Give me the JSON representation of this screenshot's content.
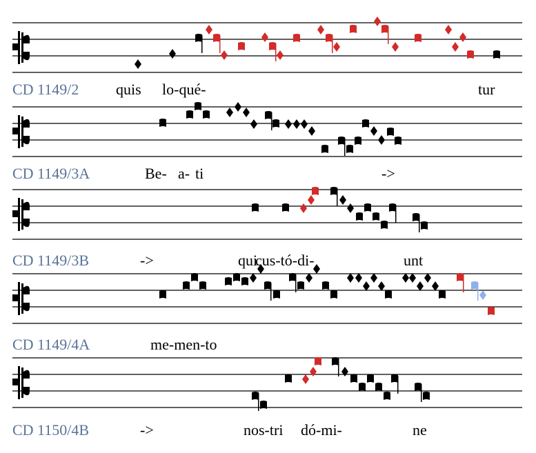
{
  "systems": [
    {
      "label": "CD 1149/2",
      "lyrics": [
        "quis",
        "lo-qué-",
        "tur"
      ]
    },
    {
      "label": "CD 1149/3A",
      "lyrics": [
        "Be-",
        "a-",
        "ti",
        "->"
      ]
    },
    {
      "label": "CD 1149/3B",
      "lyrics": [
        "->",
        "qui",
        "cus-tó-di-",
        "unt"
      ]
    },
    {
      "label": "CD 1149/4A",
      "lyrics": [
        "me-men-to"
      ]
    },
    {
      "label": "CD 1150/4B",
      "lyrics": [
        "->",
        "nos-tri",
        "dó-mi-",
        "ne"
      ]
    }
  ]
}
